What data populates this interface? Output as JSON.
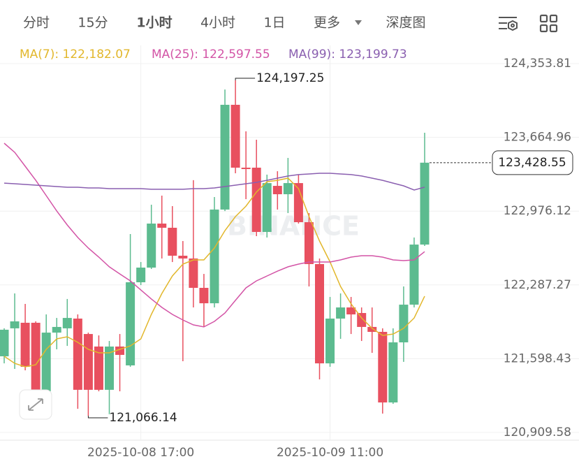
{
  "tabs": [
    {
      "label": "分时",
      "active": false
    },
    {
      "label": "15分",
      "active": false
    },
    {
      "label": "1小时",
      "active": true
    },
    {
      "label": "4小时",
      "active": false
    },
    {
      "label": "1日",
      "active": false
    },
    {
      "label": "更多",
      "active": false
    },
    {
      "label": "深度图",
      "active": false
    }
  ],
  "chart_data": {
    "type": "candlestick",
    "watermark": "BINANCE",
    "legend_separator": ": ",
    "categories": [
      null,
      null,
      null,
      null,
      null,
      null,
      null,
      null,
      null,
      null,
      null,
      null,
      null,
      "2025-10-08 17:00",
      null,
      null,
      null,
      null,
      null,
      null,
      null,
      null,
      null,
      null,
      null,
      null,
      null,
      null,
      null,
      null,
      null,
      "2025-10-09 11:00",
      null,
      null,
      null,
      null,
      null,
      null,
      null,
      null,
      null
    ],
    "open": [
      121621,
      121882,
      121934,
      121934,
      121294,
      121842,
      121882,
      121973,
      121829,
      121712,
      121308,
      121712,
      121536,
      122312,
      122449,
      122860,
      122821,
      122560,
      122534,
      122260,
      122116,
      122991,
      123969,
      123382,
      123382,
      122782,
      123212,
      123134,
      123238,
      122873,
      122482,
      121555,
      121973,
      122077,
      122025,
      121895,
      121849,
      121190,
      121751,
      122103,
      122664
    ],
    "high": [
      121882,
      122208,
      122110,
      121947,
      122012,
      121979,
      122156,
      122012,
      121842,
      121816,
      121764,
      121829,
      122762,
      122501,
      123036,
      123121,
      123023,
      122697,
      123265,
      122390,
      123108,
      124112,
      124197.25,
      123721,
      123643,
      123317,
      123349,
      123473,
      123317,
      122958,
      122534,
      122175,
      122208,
      122175,
      122077,
      122077,
      121882,
      121882,
      122273,
      122730,
      123708
    ],
    "low": [
      121555,
      121503,
      121490,
      121262,
      121262,
      121686,
      121718,
      121131,
      121066.14,
      121294,
      121080,
      121294,
      121523,
      122286,
      122436,
      122534,
      122501,
      121575,
      122077,
      121895,
      122077,
      122977,
      123330,
      123088,
      122743,
      122730,
      122991,
      122958,
      122860,
      122273,
      121405,
      121523,
      121784,
      121829,
      121764,
      121653,
      121086,
      121177,
      121569,
      122077,
      122651
    ],
    "close": [
      121869,
      121947,
      121523,
      121294,
      121842,
      121895,
      121979,
      121308,
      121308,
      121308,
      121712,
      121634,
      122312,
      122449,
      122860,
      122821,
      122560,
      122534,
      122260,
      122116,
      122991,
      123969,
      123382,
      123369,
      122782,
      123238,
      123134,
      123238,
      122873,
      122482,
      121555,
      121973,
      122077,
      122012,
      121895,
      121849,
      121190,
      121751,
      122103,
      122664,
      123428.55
    ],
    "up_color": "#5cbb8f",
    "down_color": "#e8505f",
    "series": [
      {
        "name": "MA(7)",
        "color": "#e2b72c",
        "last_label": "122,182.07",
        "values": [
          121621,
          121555,
          121523,
          121542,
          121686,
          121784,
          121803,
          121751,
          121686,
          121653,
          121653,
          121686,
          121718,
          121784,
          122012,
          122208,
          122371,
          122482,
          122521,
          122521,
          122632,
          122795,
          122925,
          123023,
          123154,
          123251,
          123264,
          123284,
          123186,
          122925,
          122697,
          122501,
          122273,
          122110,
          121979,
          121882,
          121816,
          121829,
          121882,
          121979,
          122182.07
        ]
      },
      {
        "name": "MA(25)",
        "color": "#d354a6",
        "last_label": "122,597.55",
        "values": [
          123610,
          123525,
          123395,
          123264,
          123121,
          122977,
          122847,
          122730,
          122632,
          122547,
          122456,
          122390,
          122325,
          122240,
          122156,
          122077,
          122012,
          121960,
          121914,
          121895,
          121947,
          122025,
          122143,
          122260,
          122325,
          122371,
          122416,
          122456,
          122482,
          122501,
          122501,
          122501,
          122521,
          122547,
          122560,
          122560,
          122547,
          122521,
          122514,
          122521,
          122597.55
        ]
      },
      {
        "name": "MA(99)",
        "color": "#8a5fb0",
        "last_label": "123,199.73",
        "values": [
          123238,
          123232,
          123225,
          123219,
          123212,
          123206,
          123199,
          123199,
          123193,
          123193,
          123186,
          123186,
          123186,
          123186,
          123180,
          123180,
          123180,
          123180,
          123186,
          123186,
          123193,
          123206,
          123219,
          123232,
          123245,
          123264,
          123284,
          123304,
          123317,
          123323,
          123330,
          123330,
          123323,
          123317,
          123304,
          123284,
          123264,
          123238,
          123212,
          123173,
          123199.73
        ]
      }
    ],
    "high_annotation": {
      "value": 124197.25,
      "label": "124,197.25"
    },
    "low_annotation": {
      "value": 121066.14,
      "label": "121,066.14"
    },
    "last_price": {
      "value": 123428.55,
      "label": "123,428.55"
    },
    "ylim": [
      120837.9,
      124523.4
    ],
    "yticks": [
      {
        "value": 124353.81,
        "label": "124,353.81"
      },
      {
        "value": 123664.96,
        "label": "123,664.96"
      },
      {
        "value": 122976.12,
        "label": "122,976.12"
      },
      {
        "value": 122287.27,
        "label": "122,287.27"
      },
      {
        "value": 121598.43,
        "label": "121,598.43"
      },
      {
        "value": 120909.58,
        "label": "120,909.58"
      }
    ],
    "grid": true
  }
}
